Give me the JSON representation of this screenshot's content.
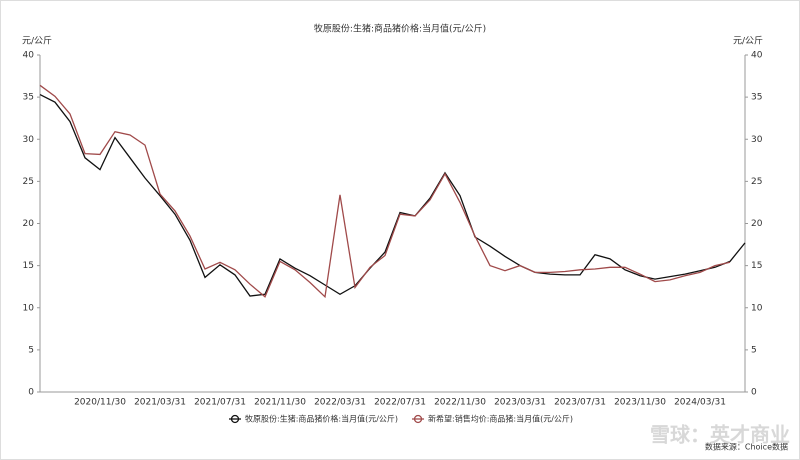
{
  "chart_data": {
    "type": "line",
    "title": "牧原股份:生猪:商品猪价格:当月值(元/公斤)",
    "y_label": "元/公斤",
    "y2_label": "元/公斤",
    "source": "数据来源：Choice数据",
    "watermark": "雪球：英才商业",
    "categories": [
      null,
      null,
      null,
      null,
      "2020/11/30",
      null,
      null,
      null,
      "2021/03/31",
      null,
      null,
      null,
      "2021/07/31",
      null,
      null,
      null,
      "2021/11/30",
      null,
      null,
      null,
      "2022/03/31",
      null,
      null,
      null,
      "2022/07/31",
      null,
      null,
      null,
      "2022/11/30",
      null,
      null,
      null,
      "2023/03/31",
      null,
      null,
      null,
      "2023/07/31",
      null,
      null,
      null,
      "2023/11/30",
      null,
      null,
      null,
      "2024/03/31",
      null,
      null,
      null
    ],
    "series": [
      {
        "name": "牧原股份:生猪:商品猪价格:当月值(元/公斤)",
        "color": "#111111",
        "values": [
          35.3,
          34.4,
          32.1,
          27.8,
          26.4,
          30.2,
          27.8,
          25.4,
          23.3,
          21.1,
          18.0,
          13.6,
          15.1,
          13.9,
          11.4,
          11.6,
          15.8,
          14.7,
          13.8,
          12.7,
          11.6,
          12.6,
          14.7,
          16.6,
          21.3,
          20.9,
          23.0,
          26.0,
          23.3,
          18.4,
          17.3,
          16.1,
          15.0,
          14.2,
          14.0,
          13.9,
          13.9,
          16.3,
          15.8,
          14.5,
          13.8,
          13.4,
          13.7,
          14.0,
          14.4,
          14.8,
          15.5,
          17.7
        ]
      },
      {
        "name": "新希望:销售均价:商品猪:当月值(元/公斤)",
        "color": "#a04a4a",
        "values": [
          36.4,
          35.1,
          33.0,
          28.3,
          28.2,
          30.9,
          30.5,
          29.3,
          23.5,
          21.5,
          18.5,
          14.6,
          15.4,
          14.5,
          12.8,
          11.3,
          15.5,
          14.5,
          13.0,
          11.3,
          23.4,
          12.4,
          14.8,
          16.2,
          21.1,
          20.9,
          22.8,
          25.9,
          22.5,
          18.5,
          15.0,
          14.4,
          15.0,
          14.2,
          14.2,
          14.3,
          14.5,
          14.6,
          14.8,
          14.8,
          14.0,
          13.1,
          13.3,
          13.8,
          14.2,
          15.0,
          15.4,
          null
        ]
      }
    ],
    "ylim": [
      0,
      40
    ],
    "yticks": [
      0,
      5,
      10,
      15,
      20,
      25,
      30,
      35,
      40
    ],
    "y2lim": [
      0,
      40
    ],
    "y2ticks": [
      0,
      5,
      10,
      15,
      20,
      25,
      30,
      35,
      40
    ],
    "grid": false
  }
}
